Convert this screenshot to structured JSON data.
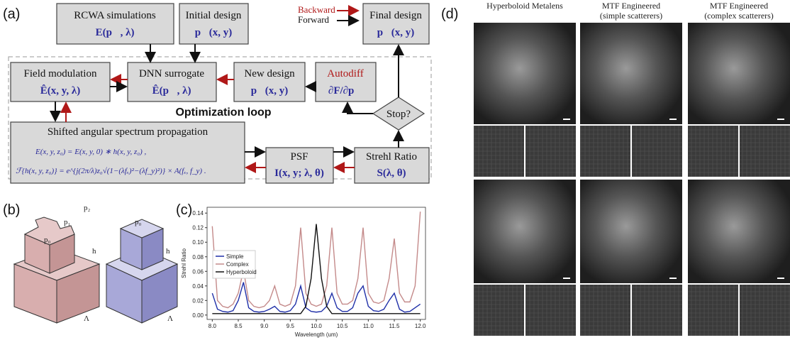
{
  "panel_labels": [
    "(a)",
    "(b)",
    "(c)",
    "(d)"
  ],
  "flowchart": {
    "legend": [
      "Backward",
      "Forward"
    ],
    "nodes": [
      {
        "label": "RCWA simulations",
        "expr": "E(p⃗, λ)"
      },
      {
        "label": "Initial design",
        "expr": "p⃗(x, y)"
      },
      {
        "label": "Final design",
        "expr": "p⃗(x, y)"
      },
      {
        "label": "Field modulation",
        "expr": "Ê(x, y, λ)"
      },
      {
        "label": "DNN surrogate",
        "expr": "Ê(p⃗, λ)"
      },
      {
        "label": "New design",
        "expr": "p⃗(x, y)"
      },
      {
        "label": "Autodiff",
        "expr": "∂F/∂p⃗"
      },
      {
        "label": "PSF",
        "expr": "I(x, y; λ, θ)"
      },
      {
        "label": "Strehl Ratio",
        "expr": "S(λ, θ)"
      }
    ],
    "loop_label": "Optimization loop",
    "decision": "Stop?",
    "propagation": {
      "label": "Shifted angular spectrum propagation",
      "equations": [
        "E(x, y, z₀) = E(x, y, 0) ∗ h(x, y, z₀) ,",
        "ℱ{h(x, y, z₀)} = e^{j(2π/λ)z₀√(1−(λfₓ)²−(λf_y)²)} × A(fₓ, f_y) ."
      ]
    }
  },
  "unit_cells": {
    "complex": [
      "p₂",
      "p₁",
      "p₀",
      "h",
      "Λ"
    ],
    "simple": [
      "p₀",
      "h",
      "Λ"
    ]
  },
  "chart_data": {
    "type": "line",
    "x_label": "Wavelength (um)",
    "y_label": "Strehl Ratio",
    "x": [
      8.0,
      8.1,
      8.2,
      8.3,
      8.4,
      8.5,
      8.6,
      8.7,
      8.8,
      8.9,
      9.0,
      9.1,
      9.2,
      9.3,
      9.4,
      9.5,
      9.6,
      9.7,
      9.8,
      9.9,
      10.0,
      10.1,
      10.2,
      10.3,
      10.4,
      10.5,
      10.6,
      10.7,
      10.8,
      10.9,
      11.0,
      11.1,
      11.2,
      11.3,
      11.4,
      11.5,
      11.6,
      11.7,
      11.8,
      11.9,
      12.0
    ],
    "series": [
      {
        "name": "Simple",
        "color": "#1f2fa8",
        "values": [
          0.03,
          0.008,
          0.005,
          0.004,
          0.006,
          0.02,
          0.045,
          0.01,
          0.005,
          0.004,
          0.005,
          0.008,
          0.012,
          0.005,
          0.004,
          0.006,
          0.015,
          0.04,
          0.01,
          0.005,
          0.004,
          0.005,
          0.012,
          0.03,
          0.01,
          0.005,
          0.005,
          0.01,
          0.03,
          0.04,
          0.012,
          0.006,
          0.005,
          0.008,
          0.02,
          0.03,
          0.008,
          0.004,
          0.005,
          0.01,
          0.015
        ]
      },
      {
        "name": "Complex",
        "color": "#c48a8a",
        "values": [
          0.122,
          0.02,
          0.012,
          0.01,
          0.015,
          0.03,
          0.062,
          0.02,
          0.012,
          0.01,
          0.012,
          0.02,
          0.04,
          0.015,
          0.012,
          0.015,
          0.04,
          0.12,
          0.03,
          0.015,
          0.012,
          0.015,
          0.04,
          0.12,
          0.03,
          0.015,
          0.015,
          0.02,
          0.05,
          0.12,
          0.03,
          0.018,
          0.016,
          0.02,
          0.05,
          0.105,
          0.03,
          0.018,
          0.018,
          0.04,
          0.142
        ]
      },
      {
        "name": "Hyperboloid",
        "color": "#111111",
        "values": [
          0.002,
          0.002,
          0.002,
          0.002,
          0.002,
          0.002,
          0.002,
          0.002,
          0.002,
          0.002,
          0.002,
          0.002,
          0.002,
          0.002,
          0.002,
          0.002,
          0.002,
          0.002,
          0.012,
          0.05,
          0.125,
          0.05,
          0.012,
          0.002,
          0.002,
          0.002,
          0.002,
          0.002,
          0.002,
          0.002,
          0.002,
          0.002,
          0.002,
          0.002,
          0.002,
          0.002,
          0.002,
          0.002,
          0.002,
          0.002,
          0.002
        ]
      }
    ],
    "xlim": [
      7.9,
      12.1
    ],
    "ylim": [
      -0.006,
      0.148
    ],
    "xticks": [
      {
        "value": 8,
        "label": "8.0"
      },
      8.5,
      {
        "value": 9,
        "label": "9.0"
      },
      9.5,
      {
        "value": 10,
        "label": "10.0"
      },
      10.5,
      {
        "value": 11,
        "label": "11.0"
      },
      11.5,
      {
        "value": 12,
        "label": "12.0"
      }
    ],
    "yticks": [
      {
        "value": 0,
        "label": "0.00"
      },
      0.02,
      0.04,
      0.06,
      0.08,
      {
        "value": 0.1,
        "label": "0.10"
      },
      0.12,
      0.14
    ],
    "legend": "center left"
  },
  "image_grid": {
    "columns": [
      [
        "Hyperboloid Metalens"
      ],
      [
        "MTF Engineered",
        "(simple scatterers)"
      ],
      [
        "MTF Engineered",
        "(complex scatterers)"
      ]
    ]
  }
}
